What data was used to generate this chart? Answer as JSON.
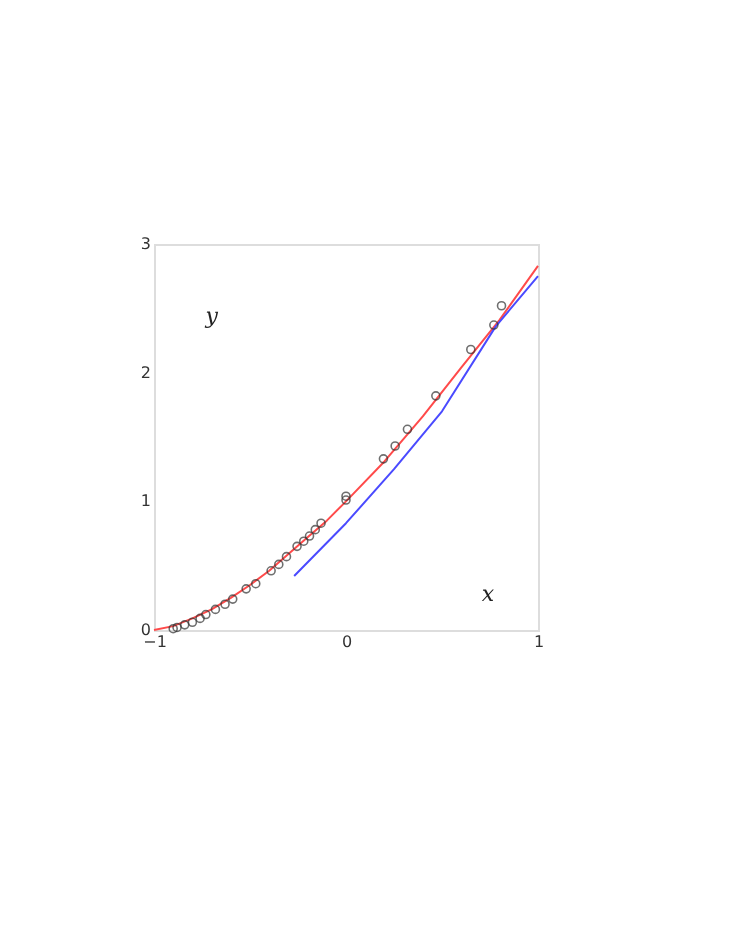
{
  "chart_data": {
    "type": "line",
    "xlabel": "x",
    "ylabel": "y",
    "xlim": [
      -1,
      1
    ],
    "ylim": [
      0,
      3
    ],
    "xticks": [
      -1,
      0,
      1
    ],
    "yticks": [
      0,
      1,
      2,
      3
    ],
    "series": [
      {
        "color": "#ff4a4a",
        "x": [
          -1,
          -0.9,
          -0.8,
          -0.7,
          -0.6,
          -0.5,
          -0.4,
          -0.3,
          -0.2,
          -0.1,
          0,
          0.2,
          0.4,
          0.6,
          0.8,
          1
        ],
        "values": [
          0,
          0.03,
          0.09,
          0.16,
          0.25,
          0.35,
          0.46,
          0.59,
          0.72,
          0.85,
          1,
          1.31,
          1.66,
          2.04,
          2.41,
          2.83
        ]
      },
      {
        "type": "line",
        "color": "#4a4aff",
        "x": [
          -0.27,
          0,
          0.25,
          0.5,
          0.78,
          1
        ],
        "values": [
          0.42,
          0.83,
          1.25,
          1.7,
          2.36,
          2.75
        ]
      },
      {
        "type": "scatter",
        "color": "#333333",
        "marker": "circle",
        "x": [
          -0.9,
          -0.88,
          -0.84,
          -0.8,
          -0.76,
          -0.73,
          -0.68,
          -0.63,
          -0.59,
          -0.52,
          -0.47,
          -0.39,
          -0.35,
          -0.31,
          -0.255,
          -0.22,
          -0.19,
          -0.16,
          -0.13,
          0,
          0,
          0.195,
          0.256,
          0.32,
          0.468,
          0.65,
          0.77,
          0.81
        ],
        "values": [
          0.01,
          0.02,
          0.04,
          0.06,
          0.09,
          0.12,
          0.16,
          0.2,
          0.24,
          0.32,
          0.36,
          0.46,
          0.51,
          0.57,
          0.65,
          0.69,
          0.73,
          0.78,
          0.83,
          1.01,
          1.04,
          1.33,
          1.43,
          1.56,
          1.82,
          2.18,
          2.37,
          2.52
        ]
      }
    ]
  }
}
